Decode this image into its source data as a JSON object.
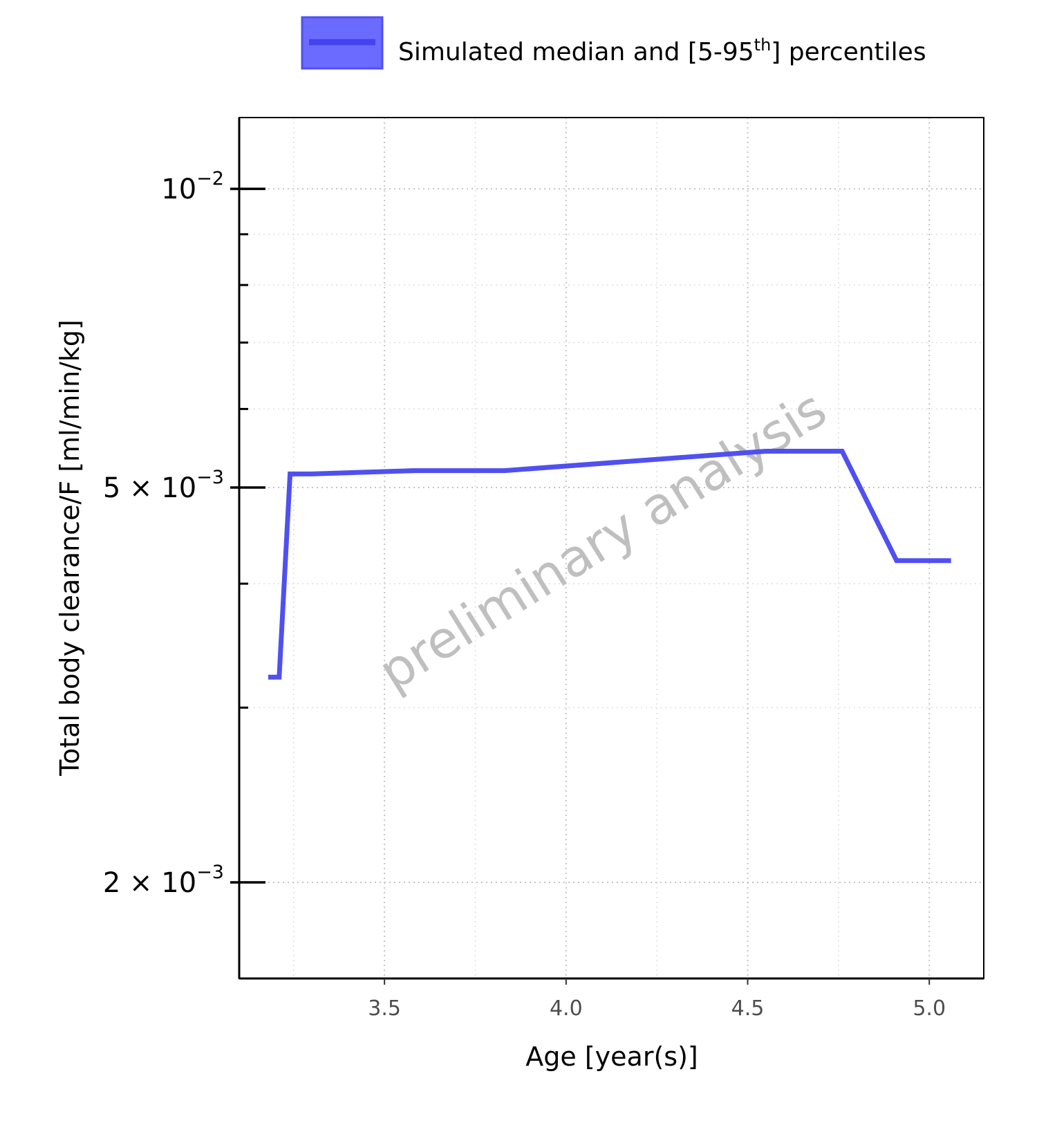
{
  "chart_data": {
    "type": "line",
    "xlabel": "Age [year(s)]",
    "ylabel": "Total body clearance/F [ml/min/kg]",
    "xlim": [
      3.1,
      5.15
    ],
    "ylim": [
      0.0016,
      0.0118
    ],
    "y_scale": "log",
    "x_ticks": [
      {
        "value": 3.5,
        "label": "3.5"
      },
      {
        "value": 4.0,
        "label": "4.0"
      },
      {
        "value": 4.5,
        "label": "4.5"
      },
      {
        "value": 5.0,
        "label": "5.0"
      }
    ],
    "y_major_ticks": [
      {
        "value": 0.01,
        "mantissa": "",
        "exponent": "10",
        "power": "−2"
      },
      {
        "value": 0.005,
        "mantissa": "5",
        "exponent": "10",
        "power": "−3"
      },
      {
        "value": 0.002,
        "mantissa": "2",
        "exponent": "10",
        "power": "−3"
      }
    ],
    "y_minor_ticks": [
      0.009,
      0.008,
      0.007,
      0.006,
      0.004,
      0.003
    ],
    "grid": true,
    "legend_position": "top",
    "legend": {
      "label_before": "Simulated median and [5-95",
      "label_sup": "th",
      "label_after": "] percentiles"
    },
    "series": [
      {
        "color": "#5050f0",
        "x": [
          3.18,
          3.21,
          3.24,
          3.3,
          3.58,
          3.83,
          4.55,
          4.76,
          4.91,
          5.06
        ],
        "y": [
          0.00322,
          0.00322,
          0.00516,
          0.00516,
          0.0052,
          0.0052,
          0.00544,
          0.00544,
          0.00422,
          0.00422
        ]
      }
    ],
    "band_color": "#6b6bff",
    "watermark": "preliminary analysis"
  }
}
